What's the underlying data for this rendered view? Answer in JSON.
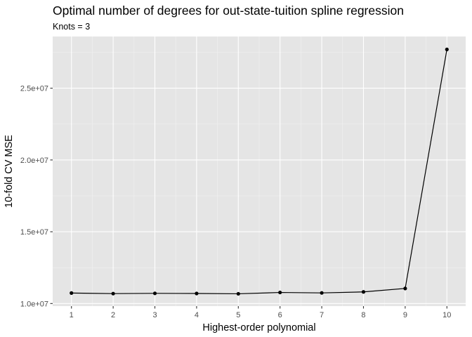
{
  "chart_data": {
    "type": "line",
    "title": "Optimal number of degrees for out-state-tuition spline regression",
    "subtitle": "Knots = 3",
    "xlabel": "Highest-order polynomial",
    "ylabel": "10-fold CV MSE",
    "x": [
      1,
      2,
      3,
      4,
      5,
      6,
      7,
      8,
      9,
      10
    ],
    "y": [
      10730000,
      10690000,
      10710000,
      10700000,
      10680000,
      10770000,
      10740000,
      10810000,
      11050000,
      27700000
    ],
    "xlim": [
      0.55,
      10.45
    ],
    "ylim": [
      9820000,
      28600000
    ],
    "x_ticks": [
      1,
      2,
      3,
      4,
      5,
      6,
      7,
      8,
      9,
      10
    ],
    "x_tick_labels": [
      "1",
      "2",
      "3",
      "4",
      "5",
      "6",
      "7",
      "8",
      "9",
      "10"
    ],
    "y_ticks": [
      10000000,
      15000000,
      20000000,
      25000000
    ],
    "y_tick_labels": [
      "1.0e+07",
      "1.5e+07",
      "2.0e+07",
      "2.5e+07"
    ],
    "y_minor_ticks": [
      12500000,
      17500000,
      22500000,
      27500000
    ],
    "grid": true,
    "legend": "none",
    "colors": {
      "panel": "#e5e5e5",
      "line": "#000000",
      "point": "#000000"
    }
  }
}
